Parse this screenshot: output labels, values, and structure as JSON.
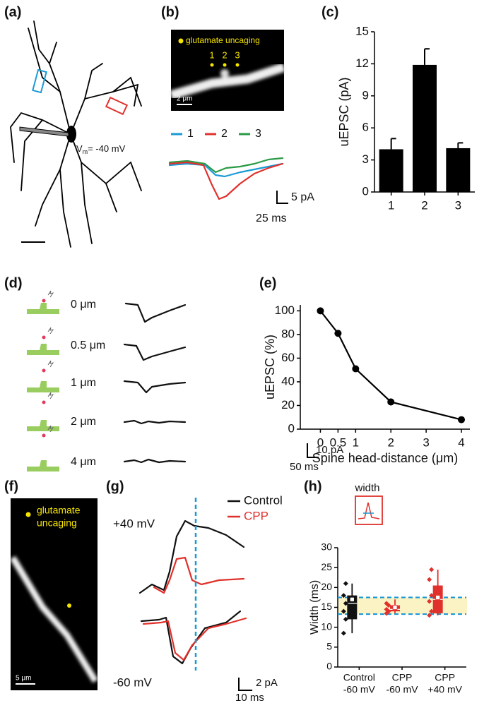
{
  "panels": {
    "a": {
      "letter": "(a)",
      "vm": {
        "v": "V",
        "sub": "m",
        "rest": "= -40 mV"
      }
    },
    "b": {
      "letter": "(b)",
      "uncaging": "glutamate uncaging",
      "spots": [
        "1",
        "2",
        "3"
      ],
      "scale": "2 μm",
      "legend": [
        {
          "name": "1",
          "color": "#1b9ad6"
        },
        {
          "name": "2",
          "color": "#e0312c"
        },
        {
          "name": "3",
          "color": "#2a9a46"
        }
      ],
      "scale_y": "5 pA",
      "scale_x": "25 ms"
    },
    "c": {
      "letter": "(c)"
    },
    "d": {
      "letter": "(d)",
      "distances": [
        "0 μm",
        "0.5 μm",
        "1 μm",
        "2 μm",
        "4 μm"
      ],
      "scale_y": "10 pA",
      "scale_x": "50 ms"
    },
    "e": {
      "letter": "(e)"
    },
    "f": {
      "letter": "(f)",
      "uncaging_lines": [
        "glutamate",
        "uncaging"
      ],
      "scale": "5 μm"
    },
    "g": {
      "letter": "(g)",
      "legend": [
        {
          "name": "Control",
          "color": "#111111"
        },
        {
          "name": "CPP",
          "color": "#e0312c"
        }
      ],
      "top": "+40 mV",
      "bottom": "-60 mV",
      "scale_y": "2 pA",
      "scale_x": "10 ms"
    },
    "h": {
      "letter": "(h)",
      "inset": "width"
    }
  },
  "chart_data": [
    {
      "type": "bar",
      "ylabel": "uEPSC (pA)",
      "categories": [
        "1",
        "2",
        "3"
      ],
      "values": [
        4.0,
        11.9,
        4.1
      ],
      "errors": [
        1.0,
        1.5,
        0.5
      ],
      "color": "#000000",
      "ylim": [
        0,
        15
      ],
      "yticks": [
        0,
        3,
        6,
        9,
        12,
        15
      ]
    },
    {
      "type": "line",
      "xlabel": "Spine head-distance (μm)",
      "ylabel": "uEPSC (%)",
      "x": [
        0,
        0.5,
        1,
        2,
        4
      ],
      "values": [
        100,
        81,
        51,
        23,
        8
      ],
      "errors": [
        0,
        2,
        2,
        3,
        2
      ],
      "color": "#000000",
      "xlim": [
        -0.57,
        4.24
      ],
      "ylim": [
        0,
        105
      ],
      "xticks": [
        0,
        0.5,
        1,
        2,
        3,
        4
      ],
      "yticks": [
        0,
        20,
        40,
        60,
        80,
        100
      ]
    },
    {
      "type": "box",
      "ylabel": "Width (ms)",
      "category_lines": [
        [
          "Control",
          "-60 mV"
        ],
        [
          "CPP",
          "-60 mV"
        ],
        [
          "CPP",
          "+40 mV"
        ]
      ],
      "colors": [
        "#111111",
        "#e0312c",
        "#e0312c"
      ],
      "boxes": [
        {
          "whisker_low": 8.5,
          "q1": 12,
          "median": 16,
          "q3": 18,
          "whisker_high": 21,
          "mean": 17
        },
        {
          "whisker_low": 13.5,
          "q1": 14,
          "median": 14.5,
          "q3": 15.5,
          "whisker_high": 17,
          "mean": 15
        },
        {
          "whisker_low": 13,
          "q1": 13.5,
          "median": 17,
          "q3": 20.5,
          "whisker_high": 24.5,
          "mean": 17.5
        }
      ],
      "points": [
        [
          8.5,
          12,
          14,
          16,
          18,
          21
        ],
        [
          13.5,
          14,
          14.5,
          15.5,
          16
        ],
        [
          13,
          14,
          16.5,
          18,
          22,
          24.5
        ]
      ],
      "reference_band": [
        13.3,
        17.5
      ],
      "reference_color": "#1b9ad6",
      "band_fill": "#fbf3c4",
      "ylim": [
        0,
        30
      ],
      "yticks": [
        0,
        5,
        10,
        15,
        20,
        25,
        30
      ]
    }
  ]
}
